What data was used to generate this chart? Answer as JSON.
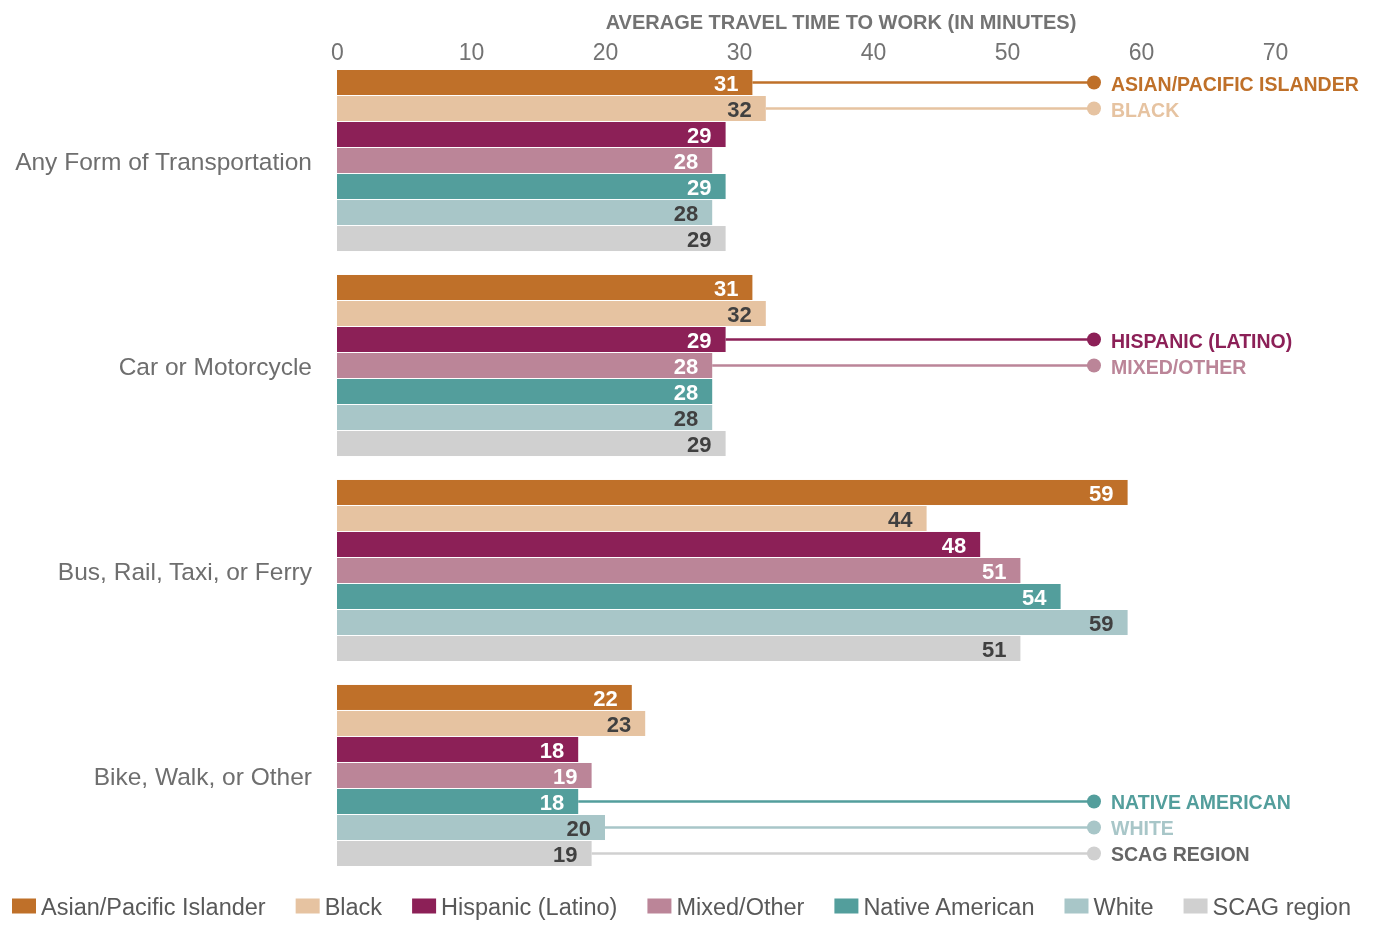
{
  "chart_data": {
    "type": "bar",
    "orientation": "horizontal",
    "xlabel": "AVERAGE TRAVEL TIME TO WORK (IN MINUTES)",
    "categories": [
      "Any Form of Transportation",
      "Car or Motorcycle",
      "Bus, Rail, Taxi, or Ferry",
      "Bike, Walk, or Other"
    ],
    "series": [
      {
        "name": "Asian/Pacific Islander",
        "color": "#bf7029",
        "values": [
          31,
          31,
          59,
          22
        ]
      },
      {
        "name": "Black",
        "color": "#e6c3a1",
        "values": [
          32,
          32,
          44,
          23
        ]
      },
      {
        "name": "Hispanic (Latino)",
        "color": "#8c2057",
        "values": [
          29,
          29,
          48,
          18
        ]
      },
      {
        "name": "Mixed/Other",
        "color": "#bb8598",
        "values": [
          28,
          28,
          51,
          19
        ]
      },
      {
        "name": "Native American",
        "color": "#539e9c",
        "values": [
          29,
          28,
          54,
          18
        ]
      },
      {
        "name": "White",
        "color": "#a8c6c8",
        "values": [
          28,
          28,
          59,
          20
        ]
      },
      {
        "name": "SCAG region",
        "color": "#d0d0d0",
        "values": [
          29,
          29,
          51,
          19
        ]
      }
    ],
    "xlim": [
      0,
      70
    ],
    "xticks": [
      0,
      10,
      20,
      30,
      40,
      50,
      60,
      70
    ],
    "data_labels": true,
    "legend": "bottom",
    "annotations": [
      "ASIAN/PACIFIC ISLANDER",
      "BLACK",
      "HISPANIC (LATINO)",
      "MIXED/OTHER",
      "NATIVE AMERICAN",
      "WHITE",
      "SCAG REGION"
    ]
  }
}
